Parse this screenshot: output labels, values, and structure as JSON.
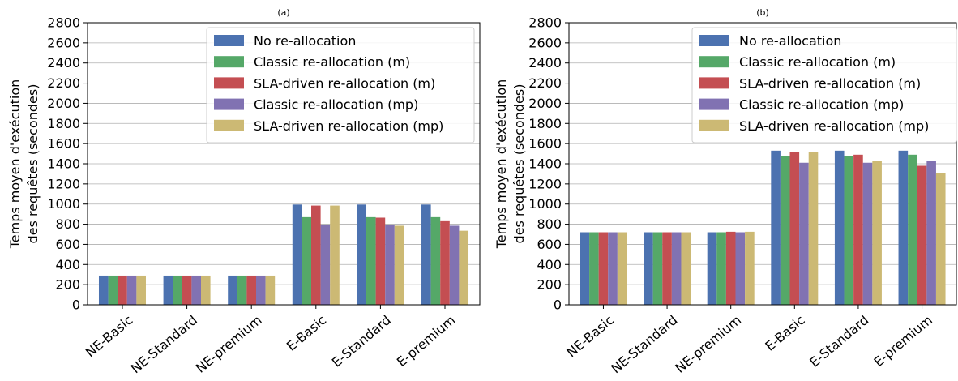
{
  "chart_data": [
    {
      "type": "bar",
      "title": "(a)",
      "ylabel_line1": "Temps moyen d'exécution",
      "ylabel_line2": "des requêtes (secondes)",
      "xlabel": "",
      "ylim": [
        0,
        2800
      ],
      "yticks": [
        0,
        200,
        400,
        600,
        800,
        1000,
        1200,
        1400,
        1600,
        1800,
        2000,
        2200,
        2400,
        2600,
        2800
      ],
      "grid": true,
      "legend_position": "top-right",
      "categories": [
        "NE-Basic",
        "NE-Standard",
        "NE-premium",
        "E-Basic",
        "E-Standard",
        "E-premium"
      ],
      "series": [
        {
          "name": "No re-allocation",
          "color": "#4C72B0",
          "values": [
            290,
            290,
            290,
            995,
            995,
            995
          ]
        },
        {
          "name": "Classic re-allocation (m)",
          "color": "#55A868",
          "values": [
            290,
            290,
            290,
            870,
            870,
            870
          ]
        },
        {
          "name": "SLA-driven re-allocation (m)",
          "color": "#C44E52",
          "values": [
            290,
            290,
            290,
            985,
            865,
            830
          ]
        },
        {
          "name": "Classic re-allocation (mp)",
          "color": "#8172B2",
          "values": [
            290,
            290,
            290,
            795,
            795,
            785
          ]
        },
        {
          "name": "SLA-driven re-allocation (mp)",
          "color": "#CCB974",
          "values": [
            290,
            290,
            290,
            985,
            785,
            735
          ]
        }
      ]
    },
    {
      "type": "bar",
      "title": "(b)",
      "ylabel_line1": "Temps moyen d'exécution",
      "ylabel_line2": "des requêtes (secondes)",
      "xlabel": "",
      "ylim": [
        0,
        2800
      ],
      "yticks": [
        0,
        200,
        400,
        600,
        800,
        1000,
        1200,
        1400,
        1600,
        1800,
        2000,
        2200,
        2400,
        2600,
        2800
      ],
      "grid": true,
      "legend_position": "top-right",
      "categories": [
        "NE-Basic",
        "NE-Standard",
        "NE-premium",
        "E-Basic",
        "E-Standard",
        "E-premium"
      ],
      "series": [
        {
          "name": "No re-allocation",
          "color": "#4C72B0",
          "values": [
            720,
            720,
            720,
            1530,
            1530,
            1530
          ]
        },
        {
          "name": "Classic re-allocation (m)",
          "color": "#55A868",
          "values": [
            720,
            720,
            720,
            1480,
            1480,
            1490
          ]
        },
        {
          "name": "SLA-driven re-allocation (m)",
          "color": "#C44E52",
          "values": [
            720,
            720,
            725,
            1520,
            1490,
            1380
          ]
        },
        {
          "name": "Classic re-allocation (mp)",
          "color": "#8172B2",
          "values": [
            720,
            720,
            720,
            1410,
            1410,
            1430
          ]
        },
        {
          "name": "SLA-driven re-allocation (mp)",
          "color": "#CCB974",
          "values": [
            720,
            720,
            725,
            1520,
            1430,
            1310
          ]
        }
      ]
    }
  ]
}
